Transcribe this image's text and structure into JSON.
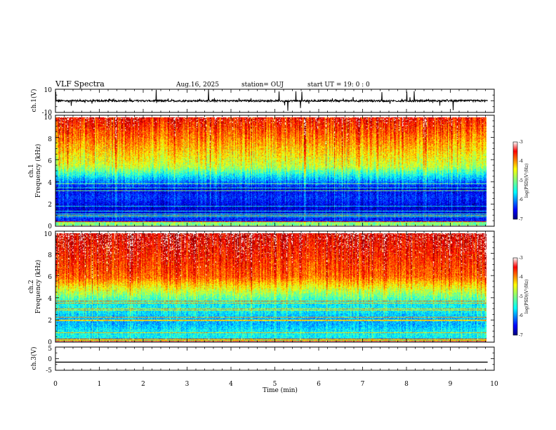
{
  "header": {
    "title": "VLF Spectra",
    "date": "Aug.16, 2025",
    "station": "station= OUJ",
    "start": "start  UT =   19: 0  : 0"
  },
  "chart_data": [
    {
      "type": "line",
      "name": "ch1-waveform",
      "ylabel": "ch.1(V)",
      "ylim": [
        -10,
        10
      ],
      "yticks": [
        "10",
        "-10"
      ],
      "xlim": [
        0,
        10
      ],
      "baseline": 0
    },
    {
      "type": "heatmap",
      "name": "ch1-spectrogram",
      "ylabel_line1": "ch.1",
      "ylabel_line2": "Frequency  (kHz)",
      "ylim": [
        0,
        10
      ],
      "yticks": [
        "0",
        "2",
        "4",
        "6",
        "8",
        "10"
      ],
      "xlim": [
        0,
        9.85
      ],
      "colorbar": {
        "label": "log(PSD)(V²/Hz)",
        "range": [
          -7,
          -3
        ],
        "ticks": [
          "-3",
          "-4",
          "-5",
          "-6",
          "-7"
        ]
      }
    },
    {
      "type": "heatmap",
      "name": "ch2-spectrogram",
      "ylabel_line1": "ch.2",
      "ylabel_line2": "Frequency  (kHz)",
      "ylim": [
        0,
        10
      ],
      "yticks": [
        "0",
        "2",
        "4",
        "6",
        "8",
        "10"
      ],
      "xlim": [
        0,
        9.85
      ],
      "colorbar": {
        "label": "log(PSD)(V²/Hz)",
        "range": [
          -7,
          -3
        ],
        "ticks": [
          "-3",
          "-4",
          "-5",
          "-6",
          "-7"
        ]
      }
    },
    {
      "type": "line",
      "name": "ch3-waveform",
      "ylabel": "ch.3(V)",
      "ylim": [
        -5,
        5
      ],
      "yticks": [
        "5",
        "0",
        "-5"
      ],
      "xlim": [
        0,
        10
      ],
      "baseline": -1.5,
      "xlabel": "Time  (min)",
      "xticks": [
        "0",
        "1",
        "2",
        "3",
        "4",
        "5",
        "6",
        "7",
        "8",
        "9",
        "10"
      ]
    }
  ],
  "colors": {
    "jet_low": "#00007f",
    "jet_mid": "#7fff7f",
    "jet_high": "#ff0000",
    "saturated": "#ffffff"
  }
}
